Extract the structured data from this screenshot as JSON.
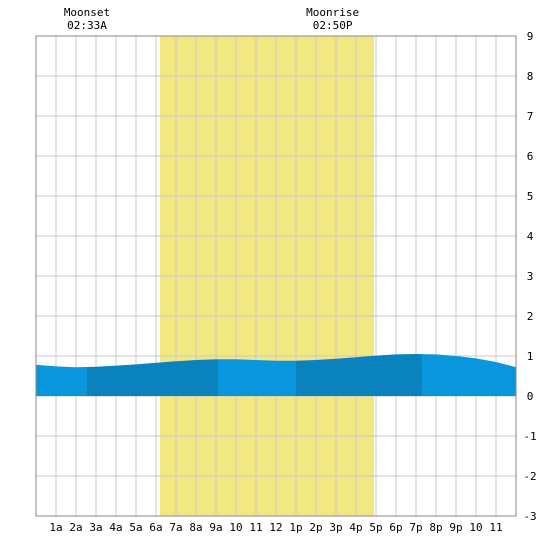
{
  "moon_events": [
    {
      "label": "Moonset",
      "time": "02:33A",
      "hour": 2.55
    },
    {
      "label": "Moonrise",
      "time": "02:50P",
      "hour": 14.83
    }
  ],
  "chart_data": {
    "type": "area",
    "title": "",
    "xlabel": "",
    "ylabel": "",
    "xlim": [
      0,
      24
    ],
    "ylim": [
      -3,
      9
    ],
    "grid": true,
    "x_tick_labels": [
      {
        "hour": 1,
        "label": "1a"
      },
      {
        "hour": 2,
        "label": "2a"
      },
      {
        "hour": 3,
        "label": "3a"
      },
      {
        "hour": 4,
        "label": "4a"
      },
      {
        "hour": 5,
        "label": "5a"
      },
      {
        "hour": 6,
        "label": "6a"
      },
      {
        "hour": 7,
        "label": "7a"
      },
      {
        "hour": 8,
        "label": "8a"
      },
      {
        "hour": 9,
        "label": "9a"
      },
      {
        "hour": 10,
        "label": "10"
      },
      {
        "hour": 11,
        "label": "11"
      },
      {
        "hour": 12,
        "label": "12"
      },
      {
        "hour": 13,
        "label": "1p"
      },
      {
        "hour": 14,
        "label": "2p"
      },
      {
        "hour": 15,
        "label": "3p"
      },
      {
        "hour": 16,
        "label": "4p"
      },
      {
        "hour": 17,
        "label": "5p"
      },
      {
        "hour": 18,
        "label": "6p"
      },
      {
        "hour": 19,
        "label": "7p"
      },
      {
        "hour": 20,
        "label": "8p"
      },
      {
        "hour": 21,
        "label": "9p"
      },
      {
        "hour": 22,
        "label": "10"
      },
      {
        "hour": 23,
        "label": "11"
      }
    ],
    "y_ticks": [
      -3,
      -2,
      -1,
      0,
      1,
      2,
      3,
      4,
      5,
      6,
      7,
      8,
      9
    ],
    "daylight": {
      "start_hour": 6.2,
      "end_hour": 16.9
    },
    "series": [
      {
        "x": [
          0,
          1,
          2,
          3,
          4,
          5,
          6,
          7,
          8,
          9,
          10,
          11,
          12,
          13,
          14,
          15,
          16,
          17,
          18,
          19,
          20,
          21,
          22,
          23,
          24
        ],
        "y": [
          0.78,
          0.74,
          0.72,
          0.73,
          0.76,
          0.79,
          0.83,
          0.87,
          0.9,
          0.92,
          0.92,
          0.9,
          0.88,
          0.88,
          0.9,
          0.93,
          0.97,
          1.01,
          1.04,
          1.05,
          1.04,
          1.0,
          0.94,
          0.85,
          0.72
        ]
      }
    ],
    "band_bounds": [
      0,
      2.55,
      9.1,
      13.0,
      19.3,
      24
    ],
    "colors": {
      "daylight": "#f2e882",
      "grid": "#c8c8c8",
      "water_light": "#0a96dc",
      "water_dark": "#0a82be"
    }
  }
}
